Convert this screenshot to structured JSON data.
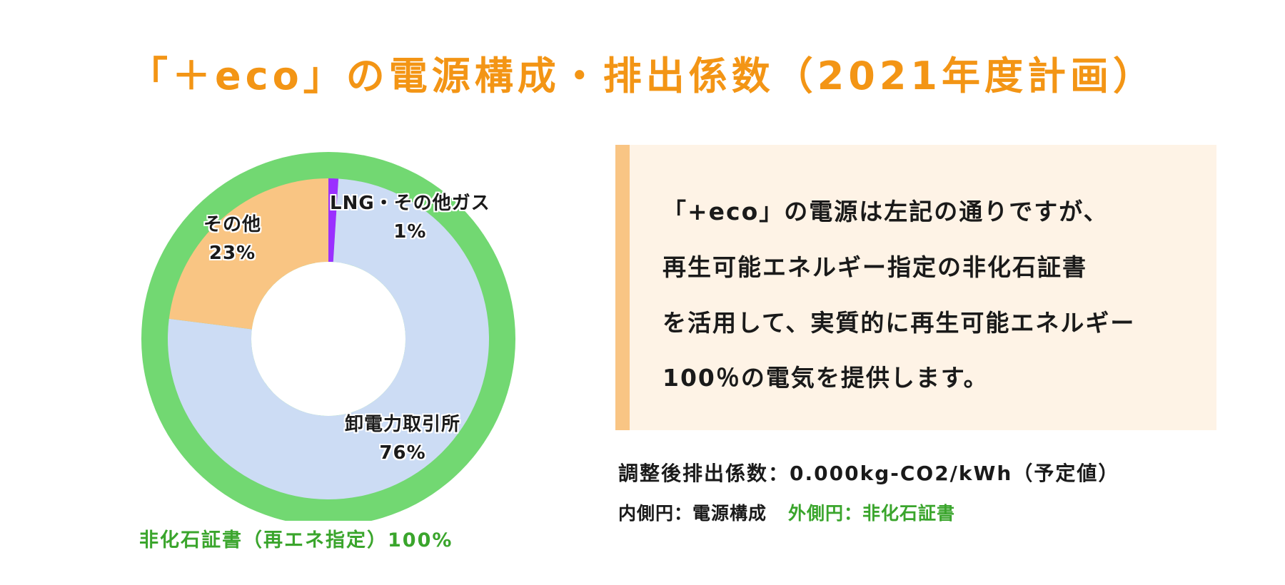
{
  "title": "「＋eco」の電源構成・排出係数（2021年度計画）",
  "chart_data": {
    "type": "pie",
    "inner": {
      "slices": [
        {
          "label": "LNG・その他ガス",
          "percent_label": "1%",
          "value": 1,
          "color": "#9b30ff"
        },
        {
          "label": "卸電力取引所",
          "percent_label": "76%",
          "value": 76,
          "color": "#ccdcf4"
        },
        {
          "label": "その他",
          "percent_label": "23%",
          "value": 23,
          "color": "#f9c583"
        }
      ]
    },
    "outer": {
      "label": "非化石証書（再エネ指定）100%",
      "value": 100,
      "color": "#72d872"
    }
  },
  "note": {
    "lines": [
      "「+eco」の電源は左記の通りですが、",
      "再生可能エネルギー指定の非化石証書",
      "を活用して、実質的に再生可能エネルギー",
      "100％の電気を提供します。"
    ]
  },
  "factor_text": "調整後排出係数：0.000kg-CO2/kWh（予定値）",
  "legend": {
    "inner": "内側円：電源構成",
    "outer": "外側円：非化石証書"
  }
}
